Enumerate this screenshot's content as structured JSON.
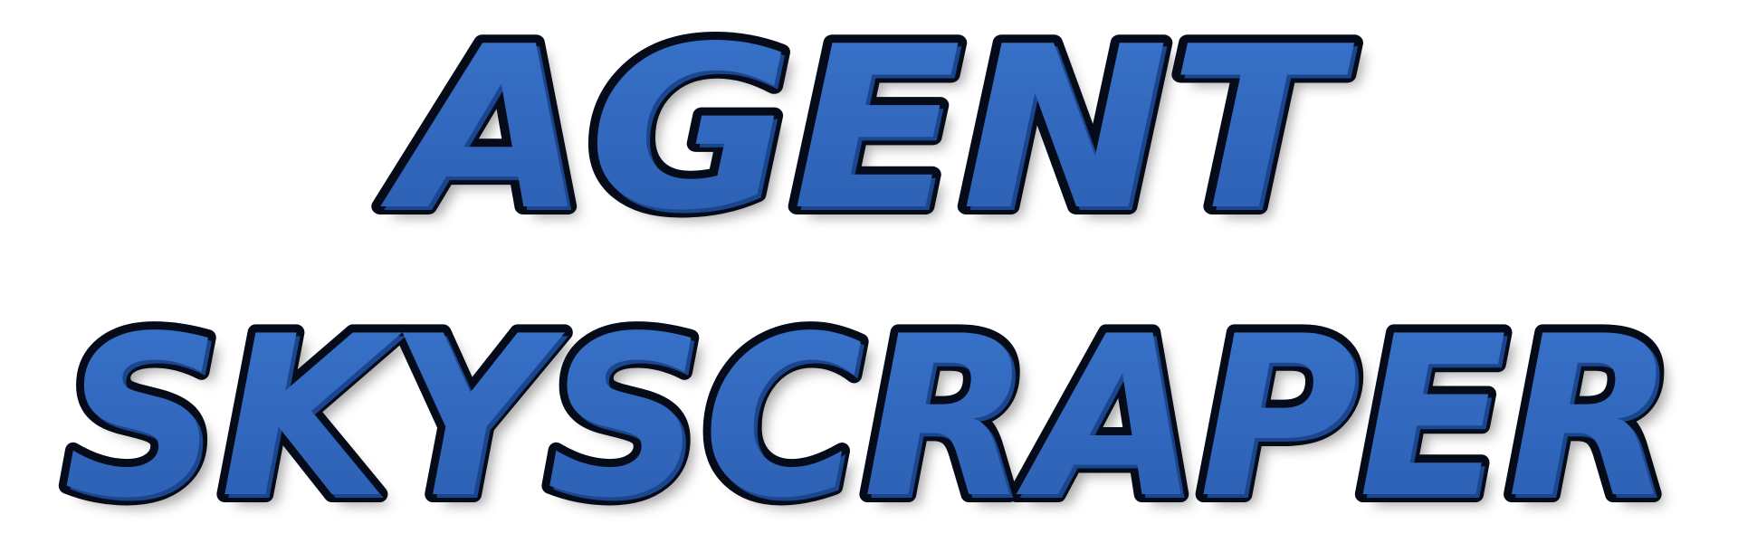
{
  "title": {
    "line1": "AGENT",
    "line2": "SKYSCRAPER"
  },
  "colors": {
    "fill": "#2f66bd",
    "fill_dark": "#1a468f",
    "outline": "#050b18",
    "shadow": "#8a8a8a",
    "background": "#ffffff"
  }
}
